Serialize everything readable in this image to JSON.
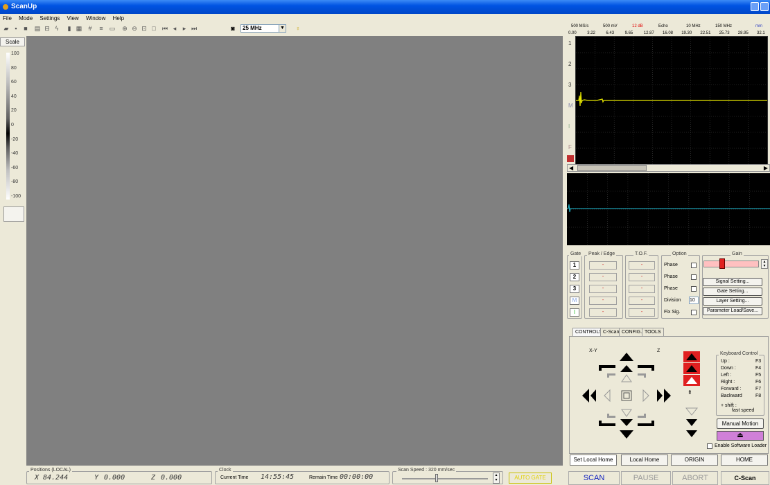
{
  "app": {
    "title": "ScanUp"
  },
  "menu": [
    "File",
    "Mode",
    "Settings",
    "View",
    "Window",
    "Help"
  ],
  "toolbar": {
    "frequency": "25 MHz"
  },
  "scale": {
    "label": "Scale",
    "ticks": [
      "100",
      "80",
      "60",
      "40",
      "20",
      "0",
      "-20",
      "-40",
      "-60",
      "-80",
      "-100"
    ]
  },
  "ascan": {
    "header": [
      "500 MS/s",
      "500 mV",
      "12 dB",
      "Echo",
      "10 MHz",
      "150 MHz",
      "mm"
    ],
    "axis": [
      "0.00",
      "3.22",
      "6.43",
      "9.65",
      "12.87",
      "16.08",
      "19.30",
      "22.51",
      "25.73",
      "28.95",
      "32.1"
    ],
    "side": [
      "1",
      "2",
      "3",
      "M",
      "I",
      "F"
    ],
    "signal_color": "#e8e800"
  },
  "bscan": {
    "signal_color": "#20c0d8"
  },
  "gates": {
    "gate_title": "Gate",
    "peak_title": "Peak / Edge",
    "tof_title": "T.O.F.",
    "option_title": "Option",
    "gain_title": "Gain",
    "rows": [
      "1",
      "2",
      "3",
      "M",
      "I"
    ],
    "dash": "-",
    "options": [
      "Phase",
      "Phase",
      "Phase",
      "Division",
      "Fix Sig."
    ],
    "division_value": "10",
    "buttons": [
      "Signal Setting...",
      "Gate Setting...",
      "Layer Setting...",
      "Parameter Load/Save..."
    ]
  },
  "controls": {
    "tabs": [
      "CONTROLS",
      "C-Scan",
      "CONFIG.",
      "TOOLS"
    ],
    "xy_label": "X-Y",
    "z_label": "Z",
    "keyboard_title": "Keyboard Control",
    "keys": [
      [
        "Up :",
        "F3"
      ],
      [
        "Down :",
        "F4"
      ],
      [
        "Left :",
        "F5"
      ],
      [
        "Right :",
        "F6"
      ],
      [
        "Forward :",
        "F7"
      ],
      [
        "Backward",
        "F8"
      ]
    ],
    "shift_note": "+ shift :",
    "fast_speed": "fast speed",
    "manual_motion": "Manual Motion",
    "enable_loader": "Enable Software Loader"
  },
  "bottom_buttons": [
    "Set Local Home",
    "Local Home",
    "ORIGIN",
    "HOME"
  ],
  "action_buttons": {
    "scan": "SCAN",
    "pause": "PAUSE",
    "abort": "ABORT",
    "mode": "C-Scan",
    "autogate": "AUTO GATE"
  },
  "status": {
    "positions_title": "Positions (LOCAL)",
    "x_label": "X",
    "x_value": "84.244",
    "y_label": "Y",
    "y_value": "0.000",
    "z_label": "Z",
    "z_value": "0.000",
    "clock_title": "Clock",
    "current_time_label": "Current Time",
    "current_time": "14:55:45",
    "remain_time_label": "Remain Time",
    "remain_time": "00:00:00",
    "scan_speed": "Scan Speed : 320 mm/sec"
  }
}
